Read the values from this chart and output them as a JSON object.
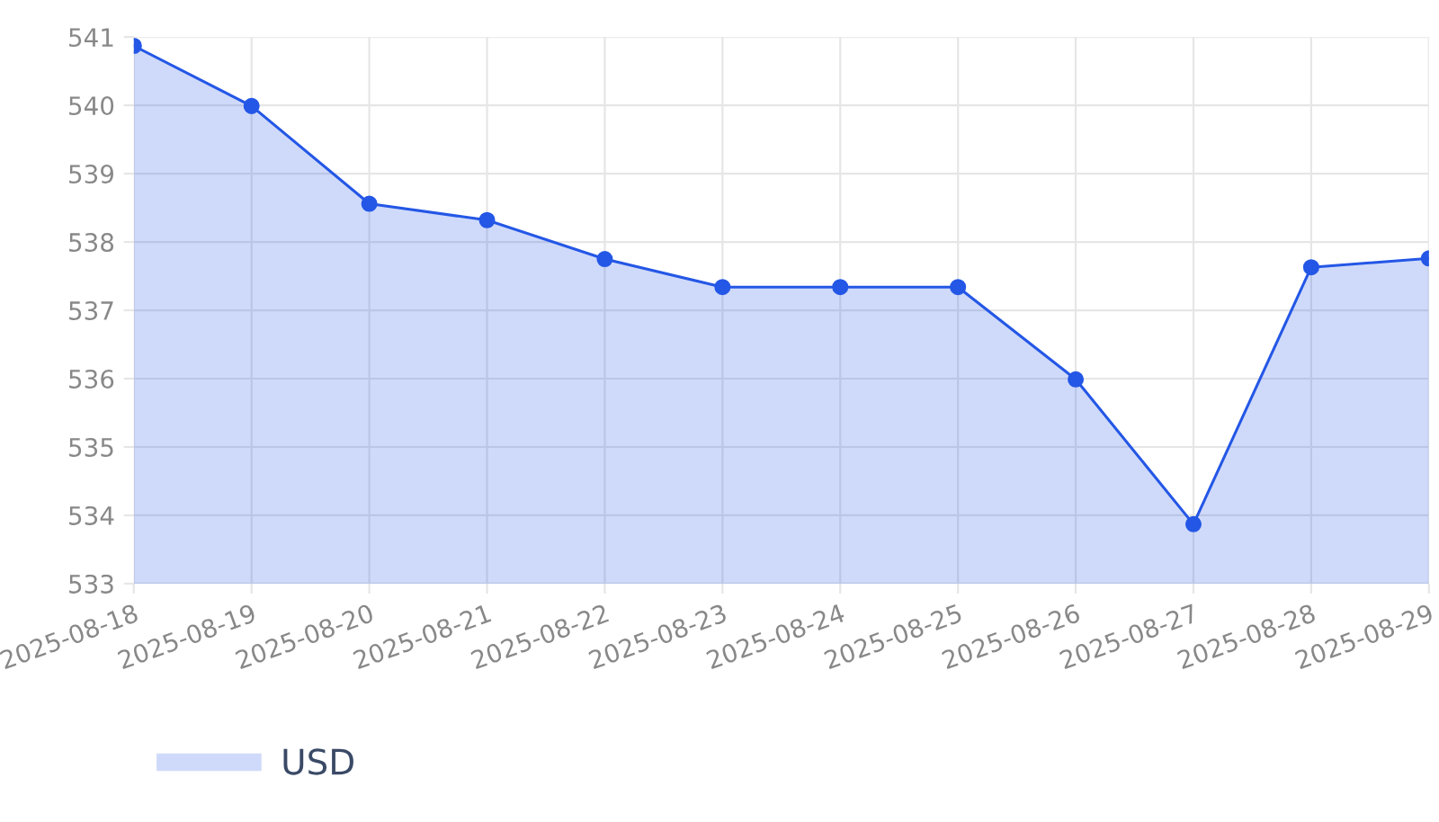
{
  "chart_data": {
    "type": "area",
    "categories": [
      "2025-08-18",
      "2025-08-19",
      "2025-08-20",
      "2025-08-21",
      "2025-08-22",
      "2025-08-23",
      "2025-08-24",
      "2025-08-25",
      "2025-08-26",
      "2025-08-27",
      "2025-08-28",
      "2025-08-29"
    ],
    "series": [
      {
        "name": "USD",
        "color": "#2457e6",
        "values": [
          540.87,
          539.99,
          538.56,
          538.32,
          537.75,
          537.34,
          537.34,
          537.34,
          535.99,
          533.87,
          537.63,
          537.76
        ]
      }
    ],
    "ylim": [
      533,
      541
    ],
    "yticks": [
      533,
      534,
      535,
      536,
      537,
      538,
      539,
      540,
      541
    ],
    "grid": true,
    "legend": "bottom left",
    "marker": "circle",
    "line_style": "solid"
  }
}
